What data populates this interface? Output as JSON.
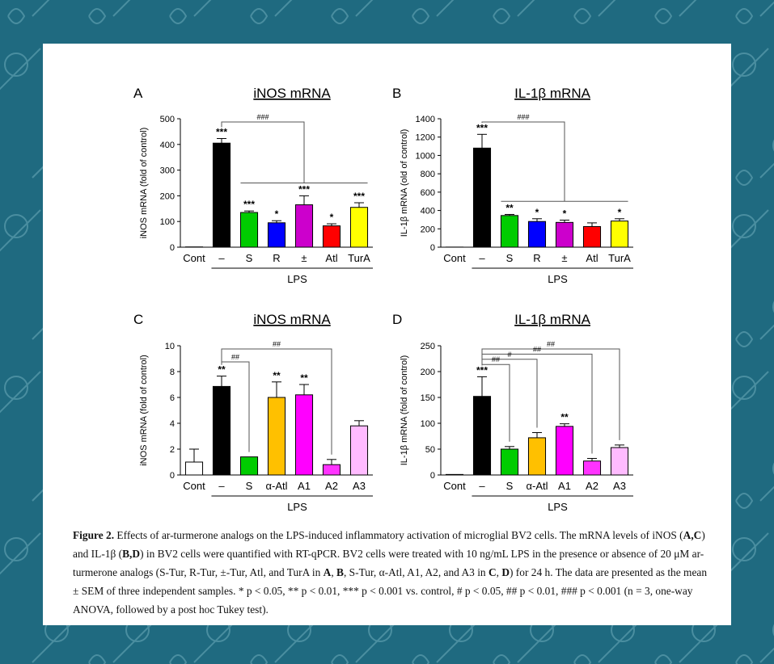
{
  "colors": {
    "background": "#1f6a80",
    "pattern": "#4a8ea0",
    "Cont": "#ffffff",
    "LPS": "#000000",
    "S": "#00cc00",
    "R": "#0000ff",
    "racemic": "#cc00cc",
    "Atl": "#ff0000",
    "TurA": "#ffff00",
    "alpha_Atl": "#ffc000",
    "A1": "#ff00ff",
    "A2": "#ff33ff",
    "A3": "#ffbbff"
  },
  "chart_data": [
    {
      "panel": "A",
      "type": "bar",
      "title": "iNOS mRNA",
      "ylabel": "iNOS mRNA (fold of control)",
      "xlabel": "LPS",
      "ylim": [
        0,
        500
      ],
      "yticks": [
        0,
        100,
        200,
        300,
        400,
        500
      ],
      "categories": [
        "Cont",
        "–",
        "S",
        "R",
        "±",
        "Atl",
        "TurA"
      ],
      "values": [
        1,
        405,
        135,
        95,
        165,
        83,
        155
      ],
      "errors": [
        0,
        18,
        6,
        8,
        35,
        8,
        18
      ],
      "significance": [
        "",
        "***",
        "***",
        "*",
        "***",
        "*",
        "***"
      ],
      "comparison_labels": [
        "###"
      ]
    },
    {
      "panel": "B",
      "type": "bar",
      "title": "IL-1β mRNA",
      "ylabel": "IL-1β mRNA (old of control)",
      "xlabel": "LPS",
      "ylim": [
        0,
        1400
      ],
      "yticks": [
        0,
        200,
        400,
        600,
        800,
        1000,
        1200,
        1400
      ],
      "categories": [
        "Cont",
        "–",
        "S",
        "R",
        "±",
        "Atl",
        "TurA"
      ],
      "values": [
        1,
        1080,
        345,
        280,
        270,
        225,
        285
      ],
      "errors": [
        0,
        150,
        12,
        30,
        25,
        40,
        25
      ],
      "significance": [
        "",
        "***",
        "**",
        "*",
        "*",
        "",
        "*"
      ],
      "comparison_labels": [
        "###"
      ]
    },
    {
      "panel": "C",
      "type": "bar",
      "title": "iNOS mRNA",
      "ylabel": "iNOS mRNA (fold of control)",
      "xlabel": "LPS",
      "ylim": [
        0,
        10
      ],
      "yticks": [
        0,
        2,
        4,
        6,
        8,
        10
      ],
      "categories": [
        "Cont",
        "–",
        "S",
        "α-Atl",
        "A1",
        "A2",
        "A3"
      ],
      "values": [
        1.0,
        6.85,
        1.4,
        6.0,
        6.2,
        0.8,
        3.8
      ],
      "errors": [
        1.0,
        0.8,
        0,
        1.2,
        0.8,
        0.4,
        0.4
      ],
      "significance": [
        "",
        "**",
        "",
        "**",
        "**",
        "",
        ""
      ],
      "comparison_labels": [
        "##",
        "##"
      ]
    },
    {
      "panel": "D",
      "type": "bar",
      "title": "IL-1β mRNA",
      "ylabel": "IL-1β mRNA (fold of control)",
      "xlabel": "LPS",
      "ylim": [
        0,
        250
      ],
      "yticks": [
        0,
        50,
        100,
        150,
        200,
        250
      ],
      "categories": [
        "Cont",
        "–",
        "S",
        "α-Atl",
        "A1",
        "A2",
        "A3"
      ],
      "values": [
        1,
        152,
        50,
        72,
        94,
        27,
        53
      ],
      "errors": [
        0,
        38,
        5,
        10,
        5,
        5,
        5
      ],
      "significance": [
        "",
        "***",
        "",
        "",
        "**",
        "",
        ""
      ],
      "comparison_labels": [
        "##",
        "#",
        "##",
        "##"
      ]
    }
  ],
  "caption": {
    "label": "Figure 2.",
    "line1": " Effects of ar-turmerone analogs on the LPS-induced inflammatory activation of microglial BV2 cells. The mRNA levels of iNOS (",
    "AC": "A,C",
    "line2": ") and IL-1β (",
    "BD": "B,D",
    "line3": ") in BV2 cells were quantified with RT-qPCR. BV2 cells were treated with 10 ng/mL LPS in the presence or absence of 20 μM ar-turmerone analogs (S-Tur, R-Tur, ±-Tur, Atl, and TurA in ",
    "A": "A",
    "sep": ", ",
    "B": "B",
    "line4": ", S-Tur, α-Atl, A1, A2, and A3 in ",
    "C": "C",
    "sep2": ", ",
    "D": "D",
    "line5": ") for 24 h. The data are presented as the mean ± SEM of three independent samples. * p < 0.05, ** p < 0.01, *** p < 0.001 vs. control, # p < 0.05, ## p < 0.01, ### p < 0.001 (n = 3, one-way ANOVA, followed by a post hoc Tukey test)."
  }
}
